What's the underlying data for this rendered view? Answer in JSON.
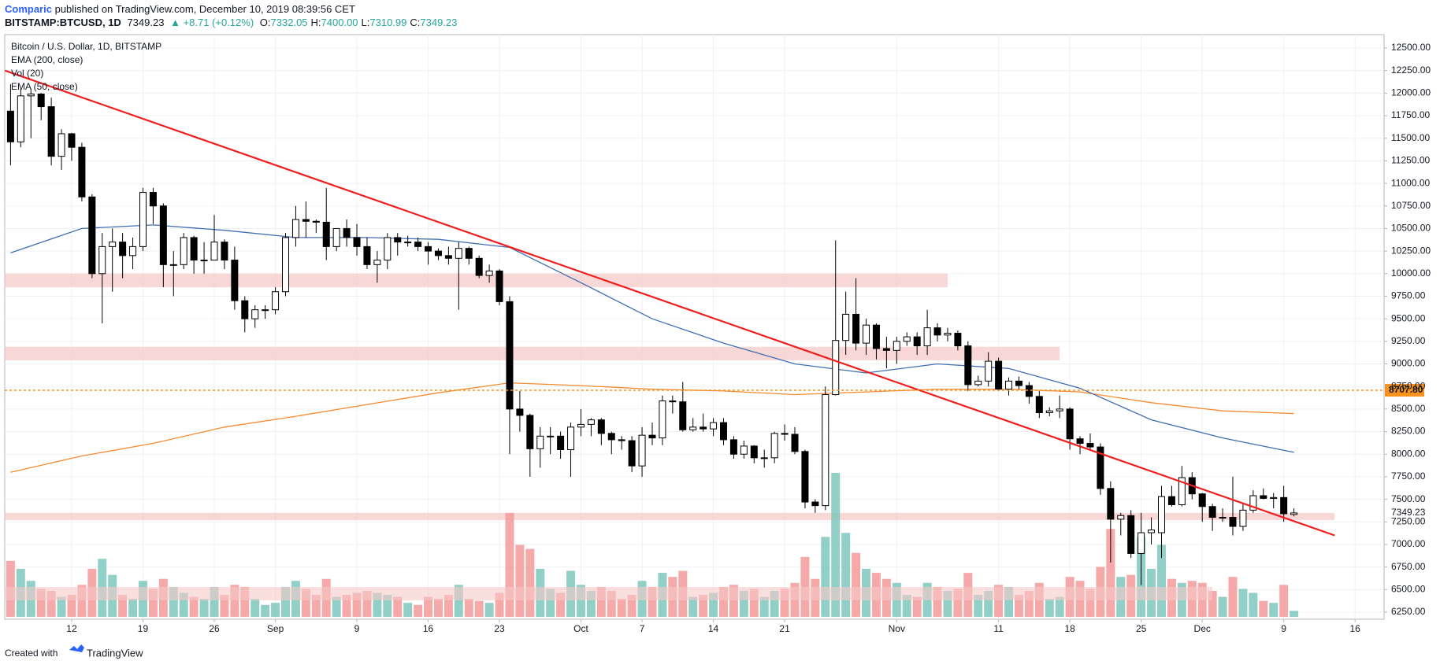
{
  "header": {
    "author": "Comparic",
    "published": "published on TradingView.com, December 10, 2019 08:39:56 CET",
    "symbol": "BITSTAMP:BTCUSD, 1D",
    "last": "7349.23",
    "change": "▲ +8.71 (+0.12%)",
    "ohlc": [
      {
        "label": "O:",
        "value": "7332.05"
      },
      {
        "label": "H:",
        "value": "7400.00"
      },
      {
        "label": "L:",
        "value": "7310.99"
      },
      {
        "label": "C:",
        "value": "7349.23"
      }
    ]
  },
  "footer": {
    "text": "Created with",
    "brand": "TradingView"
  },
  "chart_data": {
    "type": "candlestick",
    "title": "Bitcoin / U.S. Dollar, 1D, BITSTAMP",
    "legend_order": [
      "EMA (200, close)",
      "Vol (20)",
      "EMA (50, close)"
    ],
    "up_color": "#ffffff",
    "down_color": "#000000",
    "volume_name": "Vol (20)",
    "volume_up_color": "#7fc7bd",
    "volume_down_color": "#f49a9a",
    "dates": [
      "2019-08-06",
      "2019-08-07",
      "2019-08-08",
      "2019-08-09",
      "2019-08-10",
      "2019-08-11",
      "2019-08-12",
      "2019-08-13",
      "2019-08-14",
      "2019-08-15",
      "2019-08-16",
      "2019-08-17",
      "2019-08-18",
      "2019-08-19",
      "2019-08-20",
      "2019-08-21",
      "2019-08-22",
      "2019-08-23",
      "2019-08-24",
      "2019-08-25",
      "2019-08-26",
      "2019-08-27",
      "2019-08-28",
      "2019-08-29",
      "2019-08-30",
      "2019-08-31",
      "2019-09-01",
      "2019-09-02",
      "2019-09-03",
      "2019-09-04",
      "2019-09-05",
      "2019-09-06",
      "2019-09-07",
      "2019-09-08",
      "2019-09-09",
      "2019-09-10",
      "2019-09-11",
      "2019-09-12",
      "2019-09-13",
      "2019-09-14",
      "2019-09-15",
      "2019-09-16",
      "2019-09-17",
      "2019-09-18",
      "2019-09-19",
      "2019-09-20",
      "2019-09-21",
      "2019-09-22",
      "2019-09-23",
      "2019-09-24",
      "2019-09-25",
      "2019-09-26",
      "2019-09-27",
      "2019-09-28",
      "2019-09-29",
      "2019-09-30",
      "2019-10-01",
      "2019-10-02",
      "2019-10-03",
      "2019-10-04",
      "2019-10-05",
      "2019-10-06",
      "2019-10-07",
      "2019-10-08",
      "2019-10-09",
      "2019-10-10",
      "2019-10-11",
      "2019-10-12",
      "2019-10-13",
      "2019-10-14",
      "2019-10-15",
      "2019-10-16",
      "2019-10-17",
      "2019-10-18",
      "2019-10-19",
      "2019-10-20",
      "2019-10-21",
      "2019-10-22",
      "2019-10-23",
      "2019-10-24",
      "2019-10-25",
      "2019-10-26",
      "2019-10-27",
      "2019-10-28",
      "2019-10-29",
      "2019-10-30",
      "2019-10-31",
      "2019-11-01",
      "2019-11-02",
      "2019-11-03",
      "2019-11-04",
      "2019-11-05",
      "2019-11-06",
      "2019-11-07",
      "2019-11-08",
      "2019-11-09",
      "2019-11-10",
      "2019-11-11",
      "2019-11-12",
      "2019-11-13",
      "2019-11-14",
      "2019-11-15",
      "2019-11-16",
      "2019-11-17",
      "2019-11-18",
      "2019-11-19",
      "2019-11-20",
      "2019-11-21",
      "2019-11-22",
      "2019-11-23",
      "2019-11-24",
      "2019-11-25",
      "2019-11-26",
      "2019-11-27",
      "2019-11-28",
      "2019-11-29",
      "2019-11-30",
      "2019-12-01",
      "2019-12-02",
      "2019-12-03",
      "2019-12-04",
      "2019-12-05",
      "2019-12-06",
      "2019-12-07",
      "2019-12-08",
      "2019-12-09",
      "2019-12-10"
    ],
    "open": [
      11800,
      11460,
      11970,
      11990,
      11850,
      11300,
      11550,
      11400,
      10850,
      10000,
      10300,
      10350,
      10200,
      10300,
      10900,
      10750,
      10100,
      10100,
      10400,
      10150,
      10150,
      10350,
      10150,
      9700,
      9500,
      9600,
      9600,
      9800,
      10400,
      10600,
      10580,
      10570,
      10300,
      10500,
      10400,
      10300,
      10100,
      10150,
      10400,
      10350,
      10350,
      10300,
      10250,
      10200,
      10170,
      10280,
      10170,
      9980,
      10030,
      9690,
      8500,
      8430,
      8060,
      8200,
      8200,
      8050,
      8300,
      8330,
      8380,
      8230,
      8160,
      8150,
      7870,
      8210,
      8180,
      8590,
      8580,
      8270,
      8300,
      8280,
      8350,
      8160,
      8000,
      8090,
      7960,
      7960,
      8230,
      8220,
      8030,
      7470,
      7430,
      8660,
      9260,
      9550,
      9230,
      9430,
      9170,
      9150,
      9250,
      9300,
      9200,
      9400,
      9320,
      9340,
      9200,
      8770,
      8810,
      9030,
      8720,
      8810,
      8760,
      8640,
      8460,
      8480,
      8500,
      8170,
      8120,
      8080,
      7620,
      7280,
      7320,
      6900,
      7130,
      7130,
      7530,
      7440,
      7740,
      7560,
      7420,
      7300,
      7300,
      7200,
      7380,
      7540,
      7510,
      7520,
      7332.05
    ],
    "high": [
      12100,
      12050,
      12050,
      12000,
      11950,
      11600,
      11560,
      11450,
      10880,
      10450,
      10500,
      10450,
      10400,
      10950,
      10950,
      10780,
      10250,
      10450,
      10420,
      10350,
      10650,
      10380,
      10300,
      9750,
      9650,
      9650,
      9850,
      10450,
      10750,
      10800,
      10600,
      10950,
      10500,
      10600,
      10550,
      10400,
      10250,
      10450,
      10450,
      10420,
      10400,
      10350,
      10280,
      10300,
      10350,
      10300,
      10200,
      10100,
      10050,
      9750,
      8700,
      8450,
      8300,
      8300,
      8250,
      8350,
      8500,
      8400,
      8400,
      8250,
      8200,
      8200,
      8300,
      8350,
      8650,
      8650,
      8800,
      8400,
      8450,
      8400,
      8400,
      8200,
      8150,
      8100,
      8050,
      8250,
      8330,
      8300,
      8050,
      7500,
      8750,
      10370,
      9800,
      9950,
      9500,
      9450,
      9300,
      9300,
      9350,
      9350,
      9600,
      9450,
      9400,
      9370,
      9250,
      8870,
      9130,
      9070,
      8850,
      8860,
      8800,
      8700,
      8520,
      8650,
      8520,
      8200,
      8230,
      8120,
      7700,
      7350,
      7380,
      7350,
      7300,
      7650,
      7650,
      7870,
      7800,
      7570,
      7450,
      7400,
      7750,
      7450,
      7600,
      7620,
      7570,
      7650,
      7400
    ],
    "low": [
      11200,
      11400,
      11500,
      11700,
      11200,
      11150,
      11250,
      10800,
      9950,
      9450,
      9800,
      9950,
      10050,
      10250,
      10550,
      9850,
      9750,
      10050,
      10000,
      10000,
      10150,
      10050,
      9600,
      9350,
      9400,
      9500,
      9550,
      9750,
      10300,
      10400,
      10450,
      10150,
      10250,
      10300,
      10200,
      10050,
      9900,
      10050,
      10200,
      10300,
      10250,
      10100,
      10150,
      10100,
      9600,
      10100,
      9950,
      9900,
      9650,
      8000,
      8250,
      7750,
      7850,
      8000,
      7950,
      7750,
      8200,
      8200,
      8100,
      8000,
      8050,
      7800,
      7750,
      8100,
      8100,
      8450,
      8250,
      8250,
      8250,
      8200,
      8100,
      7950,
      7950,
      7900,
      7850,
      7900,
      8150,
      8000,
      7400,
      7350,
      7380,
      8650,
      9100,
      9150,
      9100,
      9050,
      8950,
      9000,
      9200,
      9100,
      9100,
      9250,
      9250,
      9150,
      8700,
      8750,
      8750,
      8700,
      8650,
      8720,
      8560,
      8400,
      8420,
      8400,
      8050,
      8000,
      8050,
      7550,
      6800,
      7100,
      6850,
      6550,
      7000,
      6850,
      7420,
      7420,
      7500,
      7250,
      7150,
      7250,
      7100,
      7150,
      7350,
      7500,
      7400,
      7250,
      7310.99
    ],
    "close": [
      11460,
      11970,
      11990,
      11850,
      11300,
      11550,
      11400,
      10850,
      10000,
      10300,
      10350,
      10200,
      10300,
      10900,
      10750,
      10100,
      10100,
      10400,
      10150,
      10150,
      10350,
      10150,
      9700,
      9500,
      9600,
      9600,
      9800,
      10400,
      10600,
      10580,
      10570,
      10300,
      10500,
      10400,
      10300,
      10100,
      10150,
      10400,
      10350,
      10350,
      10300,
      10250,
      10200,
      10170,
      10280,
      10170,
      9980,
      10030,
      9690,
      8500,
      8430,
      8060,
      8200,
      8200,
      8050,
      8300,
      8330,
      8380,
      8230,
      8160,
      8150,
      7870,
      8210,
      8180,
      8590,
      8580,
      8270,
      8300,
      8280,
      8350,
      8160,
      8000,
      8090,
      7960,
      7960,
      8230,
      8220,
      8030,
      7470,
      7430,
      8660,
      9260,
      9550,
      9230,
      9430,
      9170,
      9150,
      9250,
      9300,
      9200,
      9400,
      9320,
      9340,
      9200,
      8770,
      8810,
      9030,
      8720,
      8810,
      8760,
      8640,
      8460,
      8480,
      8500,
      8170,
      8120,
      8080,
      7620,
      7280,
      7320,
      6900,
      7130,
      7160,
      7530,
      7440,
      7740,
      7560,
      7420,
      7300,
      7300,
      7200,
      7380,
      7540,
      7510,
      7520,
      7340,
      7349.23
    ],
    "volume": [
      14000,
      12000,
      9000,
      7000,
      6500,
      5000,
      5500,
      8000,
      12000,
      14500,
      10500,
      5500,
      4500,
      9000,
      7000,
      9500,
      7500,
      6000,
      5000,
      4500,
      7500,
      5500,
      8000,
      7500,
      4500,
      3000,
      3500,
      7500,
      9000,
      7000,
      5500,
      9500,
      5000,
      5500,
      6000,
      6500,
      6000,
      5500,
      5000,
      3500,
      3000,
      5000,
      4500,
      5500,
      8000,
      4500,
      4000,
      3500,
      6000,
      26000,
      18000,
      17000,
      12000,
      7000,
      6000,
      11500,
      8000,
      6500,
      7500,
      6500,
      4500,
      5500,
      9000,
      7500,
      11000,
      10000,
      11500,
      5000,
      5500,
      6000,
      7500,
      8000,
      6500,
      7000,
      5000,
      6500,
      7000,
      8500,
      15000,
      9500,
      20000,
      36000,
      21000,
      16000,
      12000,
      11000,
      9500,
      8500,
      5500,
      5000,
      8500,
      7500,
      6500,
      7000,
      11000,
      5500,
      6500,
      8000,
      7500,
      5500,
      6500,
      8500,
      4500,
      5000,
      10000,
      9000,
      7000,
      12500,
      22000,
      10000,
      10500,
      20000,
      12000,
      18000,
      9500,
      8500,
      9000,
      8500,
      6500,
      5000,
      10000,
      7000,
      6000,
      4000,
      3500,
      8000,
      1500
    ],
    "overlays": [
      {
        "name": "EMA (200, close)",
        "color": "#f7892f",
        "x": [
          "2019-08-06",
          "2019-08-13",
          "2019-08-20",
          "2019-08-27",
          "2019-09-03",
          "2019-09-10",
          "2019-09-17",
          "2019-09-24",
          "2019-10-01",
          "2019-10-08",
          "2019-10-15",
          "2019-10-22",
          "2019-10-29",
          "2019-11-05",
          "2019-11-12",
          "2019-11-19",
          "2019-11-26",
          "2019-12-03",
          "2019-12-10"
        ],
        "values": [
          7800,
          7980,
          8120,
          8300,
          8420,
          8550,
          8680,
          8790,
          8760,
          8720,
          8700,
          8660,
          8690,
          8720,
          8720,
          8690,
          8570,
          8480,
          8450
        ]
      },
      {
        "name": "EMA (50, close)",
        "color": "#3f6db3",
        "x": [
          "2019-08-06",
          "2019-08-13",
          "2019-08-20",
          "2019-08-27",
          "2019-09-03",
          "2019-09-10",
          "2019-09-17",
          "2019-09-24",
          "2019-10-01",
          "2019-10-08",
          "2019-10-15",
          "2019-10-22",
          "2019-10-29",
          "2019-11-05",
          "2019-11-12",
          "2019-11-19",
          "2019-11-26",
          "2019-12-03",
          "2019-12-10"
        ],
        "values": [
          10230,
          10500,
          10540,
          10480,
          10400,
          10400,
          10380,
          10290,
          9900,
          9500,
          9230,
          9000,
          8900,
          9000,
          8950,
          8730,
          8380,
          8180,
          8020
        ]
      }
    ],
    "zones": [
      {
        "from": 9850,
        "to": 10000,
        "end": "2019-11-06"
      },
      {
        "from": 9040,
        "to": 9190,
        "end": "2019-11-17"
      },
      {
        "from": 7270,
        "to": 7350,
        "end": "2019-12-14"
      }
    ],
    "zone_color": "#f6c9c9",
    "trendline": {
      "start": {
        "date": "2019-08-06",
        "price": 12250
      },
      "end": {
        "date": "2019-12-14",
        "price": 7100
      },
      "color": "#f01e1e"
    },
    "level": {
      "value": 8707.8,
      "label": "8707.80",
      "color": "#f7931a"
    },
    "ylim": [
      6250,
      12500
    ],
    "yticks": [
      {
        "value": 6250,
        "label": "6250.00"
      },
      {
        "value": 6500,
        "label": "6500.00"
      },
      {
        "value": 6750,
        "label": "6750.00"
      },
      {
        "value": 7000,
        "label": "7000.00"
      },
      {
        "value": 7250,
        "label": "7250.00"
      },
      {
        "value": 7500,
        "label": "7500.00"
      },
      {
        "value": 7750,
        "label": "7750.00"
      },
      {
        "value": 8000,
        "label": "8000.00"
      },
      {
        "value": 8250,
        "label": "8250.00"
      },
      {
        "value": 8500,
        "label": "8500.00"
      },
      {
        "value": 8750,
        "label": "8750.00"
      },
      {
        "value": 9000,
        "label": "9000.00"
      },
      {
        "value": 9250,
        "label": "9250.00"
      },
      {
        "value": 9500,
        "label": "9500.00"
      },
      {
        "value": 9750,
        "label": "9750.00"
      },
      {
        "value": 10000,
        "label": "10000.00"
      },
      {
        "value": 10250,
        "label": "10250.00"
      },
      {
        "value": 10500,
        "label": "10500.00"
      },
      {
        "value": 10750,
        "label": "10750.00"
      },
      {
        "value": 11000,
        "label": "11000.00"
      },
      {
        "value": 11250,
        "label": "11250.00"
      },
      {
        "value": 11500,
        "label": "11500.00"
      },
      {
        "value": 11750,
        "label": "11750.00"
      },
      {
        "value": 12000,
        "label": "12000.00"
      },
      {
        "value": 12250,
        "label": "12250.00"
      },
      {
        "value": 12500,
        "label": "12500.00"
      }
    ],
    "xticks": [
      {
        "value": "2019-08-12",
        "label": "12"
      },
      {
        "value": "2019-08-19",
        "label": "19"
      },
      {
        "value": "2019-08-26",
        "label": "26"
      },
      {
        "value": "2019-09-01",
        "label": "Sep"
      },
      {
        "value": "2019-09-09",
        "label": "9"
      },
      {
        "value": "2019-09-16",
        "label": "16"
      },
      {
        "value": "2019-09-23",
        "label": "23"
      },
      {
        "value": "2019-10-01",
        "label": "Oct"
      },
      {
        "value": "2019-10-07",
        "label": "7"
      },
      {
        "value": "2019-10-14",
        "label": "14"
      },
      {
        "value": "2019-10-21",
        "label": "21"
      },
      {
        "value": "2019-11-01",
        "label": "Nov"
      },
      {
        "value": "2019-11-11",
        "label": "11"
      },
      {
        "value": "2019-11-18",
        "label": "18"
      },
      {
        "value": "2019-11-25",
        "label": "25"
      },
      {
        "value": "2019-12-01",
        "label": "Dec"
      },
      {
        "value": "2019-12-09",
        "label": "9"
      },
      {
        "value": "2019-12-16",
        "label": "16"
      }
    ],
    "grid": true
  }
}
